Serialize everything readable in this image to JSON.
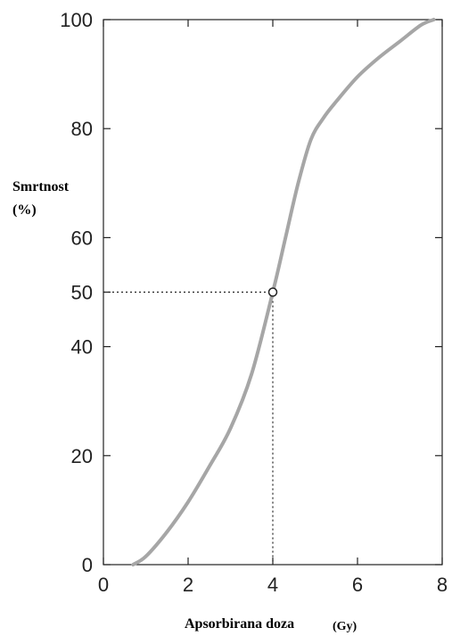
{
  "chart_data": {
    "type": "line",
    "title": "",
    "ylabel_line1": "Smrtnost",
    "ylabel_line2": "(%)",
    "xlabel": "Apsorbirana doza",
    "xlabel_unit": "(Gy)",
    "xlim": [
      0,
      8
    ],
    "ylim": [
      0,
      100
    ],
    "x_ticks": [
      0,
      2,
      4,
      6,
      8
    ],
    "y_ticks": [
      0,
      20,
      40,
      60,
      80,
      100
    ],
    "y_tick_extra": [
      50
    ],
    "grid": false,
    "legend": "none",
    "series": [
      {
        "color": "#a6a6a6",
        "x": [
          0.7,
          1.0,
          1.5,
          2.0,
          2.5,
          3.0,
          3.5,
          4.0,
          4.3,
          4.6,
          4.9,
          5.2,
          5.5,
          6.0,
          6.5,
          7.0,
          7.5,
          7.8
        ],
        "y": [
          0,
          1.5,
          6,
          11.5,
          18,
          25,
          35,
          50,
          60,
          70,
          78,
          82,
          85,
          89.5,
          93,
          96,
          99,
          100
        ]
      }
    ],
    "marker_point": {
      "x": 4,
      "y": 50
    }
  }
}
